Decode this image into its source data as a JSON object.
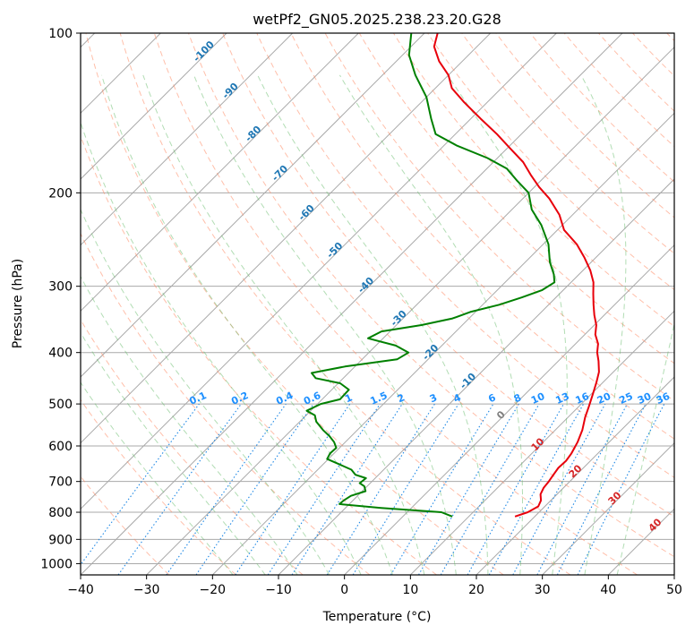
{
  "chart_data": {
    "type": "line",
    "diagram": "skew-t log-p",
    "title": "wetPf2_GN05.2025.238.23.20.G28",
    "xlabel": "Temperature (°C)",
    "ylabel": "Pressure (hPa)",
    "xlim": [
      -40,
      50
    ],
    "ylim": [
      1050,
      100
    ],
    "y_scale": "log",
    "x_ticks": [
      -40,
      -30,
      -20,
      -10,
      0,
      10,
      20,
      30,
      40,
      50
    ],
    "x_tick_labels": [
      "−40",
      "−30",
      "−20",
      "−10",
      "0",
      "10",
      "20",
      "30",
      "40",
      "50"
    ],
    "y_ticks": [
      100,
      200,
      300,
      400,
      500,
      600,
      700,
      800,
      900,
      1000
    ],
    "y_tick_labels": [
      "100",
      "200",
      "300",
      "400",
      "500",
      "600",
      "700",
      "800",
      "900",
      "1000"
    ],
    "grid": true,
    "colors": {
      "temperature": "#e8000b",
      "dewpoint": "#008000",
      "isotherm": "#a9a9a9",
      "dry_adiabat": "#ff8a65",
      "moist_adiabat": "#66bb6a",
      "mixing_ratio": "#1e88e5",
      "dry_label": "#1f77b4",
      "moist_label": "#d62728",
      "zero_label": "#808080"
    },
    "series": [
      {
        "key": "temperature",
        "points": [
          [
            17,
            815
          ],
          [
            18.3,
            800
          ],
          [
            19,
            780
          ],
          [
            18.5,
            760
          ],
          [
            17.5,
            740
          ],
          [
            17,
            720
          ],
          [
            16.8,
            700
          ],
          [
            16.5,
            680
          ],
          [
            16.2,
            660
          ],
          [
            16.3,
            640
          ],
          [
            16,
            620
          ],
          [
            15.2,
            590
          ],
          [
            14.1,
            560
          ],
          [
            12.6,
            530
          ],
          [
            11.5,
            505
          ],
          [
            10.3,
            480
          ],
          [
            9,
            455
          ],
          [
            7.8,
            435
          ],
          [
            6.1,
            415
          ],
          [
            4.6,
            400
          ],
          [
            3.4,
            385
          ],
          [
            1.6,
            370
          ],
          [
            0.3,
            355
          ],
          [
            -1.5,
            340
          ],
          [
            -3.2,
            325
          ],
          [
            -4.9,
            310
          ],
          [
            -6.6,
            295
          ],
          [
            -8.9,
            280
          ],
          [
            -11.7,
            265
          ],
          [
            -14.9,
            250
          ],
          [
            -19,
            235
          ],
          [
            -22,
            220
          ],
          [
            -26,
            205
          ],
          [
            -29.3,
            195
          ],
          [
            -32.4,
            185
          ],
          [
            -35.5,
            175
          ],
          [
            -39.5,
            165
          ],
          [
            -43.7,
            155
          ],
          [
            -48.5,
            145
          ],
          [
            -53.5,
            135
          ],
          [
            -57.5,
            127
          ],
          [
            -60,
            120
          ],
          [
            -63.5,
            113
          ],
          [
            -66.5,
            106
          ],
          [
            -68,
            100
          ]
        ]
      },
      {
        "key": "dewpoint",
        "points": [
          [
            7.5,
            815
          ],
          [
            5.2,
            800
          ],
          [
            -4.6,
            785
          ],
          [
            -11.5,
            772
          ],
          [
            -11.4,
            760
          ],
          [
            -11,
            745
          ],
          [
            -9.5,
            730
          ],
          [
            -10.4,
            715
          ],
          [
            -11.6,
            705
          ],
          [
            -11.4,
            690
          ],
          [
            -13.5,
            680
          ],
          [
            -14.9,
            665
          ],
          [
            -17.5,
            650
          ],
          [
            -20.2,
            635
          ],
          [
            -20.6,
            620
          ],
          [
            -20.5,
            605
          ],
          [
            -21.7,
            590
          ],
          [
            -23.3,
            575
          ],
          [
            -25.2,
            560
          ],
          [
            -27.5,
            540
          ],
          [
            -28.7,
            525
          ],
          [
            -30.6,
            515
          ],
          [
            -29.5,
            500
          ],
          [
            -27.3,
            490
          ],
          [
            -27.4,
            470
          ],
          [
            -29.7,
            457
          ],
          [
            -34.2,
            447
          ],
          [
            -35.6,
            437
          ],
          [
            -31.5,
            425
          ],
          [
            -24.7,
            412
          ],
          [
            -24,
            400
          ],
          [
            -27,
            388
          ],
          [
            -32.3,
            376
          ],
          [
            -31.3,
            365
          ],
          [
            -26.2,
            355
          ],
          [
            -22.5,
            345
          ],
          [
            -20.7,
            335
          ],
          [
            -17.5,
            325
          ],
          [
            -15.2,
            315
          ],
          [
            -13.2,
            305
          ],
          [
            -12.5,
            295
          ],
          [
            -13.8,
            285
          ],
          [
            -16.3,
            270
          ],
          [
            -19.2,
            250
          ],
          [
            -23.2,
            230
          ],
          [
            -27,
            215
          ],
          [
            -30,
            200
          ],
          [
            -33.5,
            190
          ],
          [
            -37,
            180
          ],
          [
            -41.5,
            172
          ],
          [
            -48,
            163
          ],
          [
            -53,
            155
          ],
          [
            -56,
            145
          ],
          [
            -60,
            132
          ],
          [
            -65,
            120
          ],
          [
            -69,
            110
          ],
          [
            -72,
            100
          ]
        ]
      }
    ],
    "mixing_ratio_labels": [
      "0.1",
      "0.2",
      "0.4",
      "0.6",
      "1",
      "1.5",
      "2",
      "3",
      "4",
      "6",
      "8",
      "10",
      "13",
      "16",
      "20",
      "25",
      "30",
      "36"
    ],
    "dry_adiabat_labels": [
      "-100",
      "-90",
      "-80",
      "-70",
      "-60",
      "-50",
      "-40",
      "-30",
      "-20",
      "-10"
    ],
    "moist_adiabat_labels": [
      "0",
      "10",
      "20",
      "30",
      "40"
    ]
  }
}
